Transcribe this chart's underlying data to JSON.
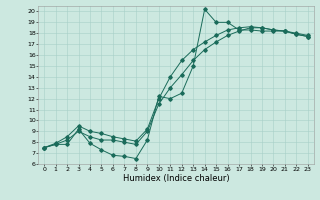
{
  "title": "",
  "xlabel": "Humidex (Indice chaleur)",
  "bg_color": "#cce8e0",
  "line_color": "#1a6b5a",
  "grid_color": "#a8cfc8",
  "xlim": [
    -0.5,
    23.5
  ],
  "ylim": [
    6,
    20.5
  ],
  "xticks": [
    0,
    1,
    2,
    3,
    4,
    5,
    6,
    7,
    8,
    9,
    10,
    11,
    12,
    13,
    14,
    15,
    16,
    17,
    18,
    19,
    20,
    21,
    22,
    23
  ],
  "yticks": [
    6,
    7,
    8,
    9,
    10,
    11,
    12,
    13,
    14,
    15,
    16,
    17,
    18,
    19,
    20
  ],
  "series1_x": [
    0,
    1,
    2,
    3,
    4,
    5,
    6,
    7,
    8,
    9,
    10,
    11,
    12,
    13,
    14,
    15,
    16,
    17,
    18,
    19,
    20,
    21,
    22,
    23
  ],
  "series1_y": [
    7.5,
    7.8,
    7.8,
    9.2,
    7.9,
    7.3,
    6.8,
    6.7,
    6.5,
    8.2,
    12.2,
    12.0,
    12.5,
    15.0,
    20.2,
    19.0,
    19.0,
    18.3,
    18.3,
    18.2,
    18.2,
    18.2,
    18.0,
    17.8
  ],
  "series2_x": [
    0,
    1,
    2,
    3,
    4,
    5,
    6,
    7,
    8,
    9,
    10,
    11,
    12,
    13,
    14,
    15,
    16,
    17,
    18,
    19,
    20,
    21,
    22,
    23
  ],
  "series2_y": [
    7.5,
    7.8,
    8.2,
    9.0,
    8.5,
    8.2,
    8.2,
    8.0,
    7.8,
    9.0,
    11.5,
    13.0,
    14.2,
    15.5,
    16.5,
    17.2,
    17.8,
    18.2,
    18.5,
    18.5,
    18.3,
    18.2,
    17.9,
    17.7
  ],
  "series3_x": [
    0,
    1,
    2,
    3,
    4,
    5,
    6,
    7,
    8,
    9,
    10,
    11,
    12,
    13,
    14,
    15,
    16,
    17,
    18,
    19,
    20,
    21,
    22,
    23
  ],
  "series3_y": [
    7.5,
    7.9,
    8.5,
    9.5,
    9.0,
    8.8,
    8.5,
    8.3,
    8.1,
    9.2,
    12.0,
    14.0,
    15.5,
    16.5,
    17.2,
    17.8,
    18.3,
    18.5,
    18.6,
    18.5,
    18.3,
    18.2,
    17.9,
    17.7
  ]
}
